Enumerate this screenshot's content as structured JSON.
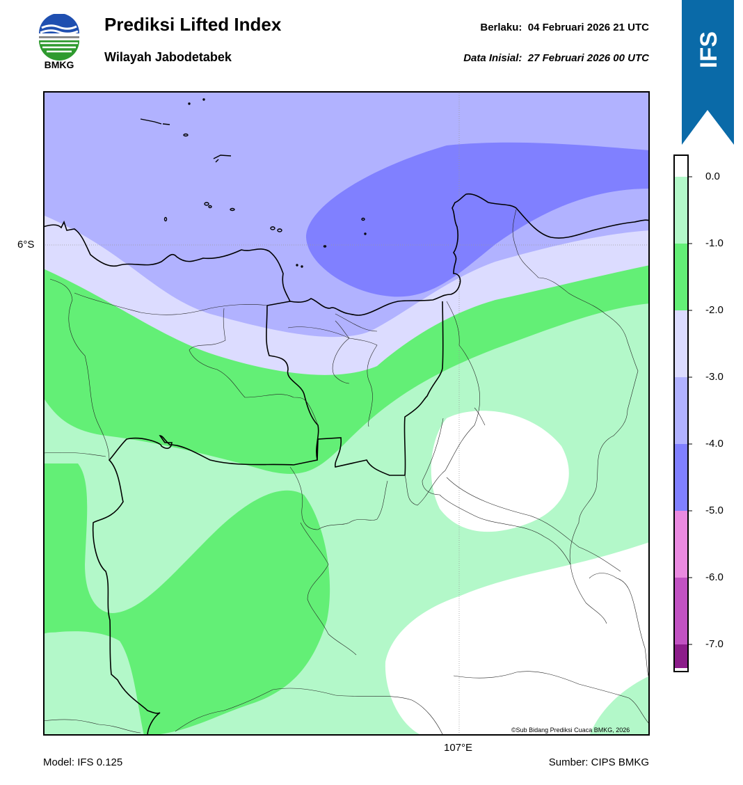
{
  "header": {
    "logo_text": "BMKG",
    "title": "Prediksi Lifted Index",
    "subtitle": "Wilayah Jabodetabek",
    "valid_label": "Berlaku:",
    "valid_value": "04 Februari 2026 21 UTC",
    "init_label": "Data Inisial:",
    "init_value": "27 Februari 2026 00 UTC"
  },
  "ribbon": {
    "text": "IFS",
    "color": "#0a6aa8"
  },
  "map": {
    "lat_label": "6°S",
    "lon_label": "107°E",
    "credit": "©Sub Bidang Prediksi Cuaca BMKG, 2026"
  },
  "colorbar": {
    "labels": [
      "0.0",
      "-1.0",
      "-2.0",
      "-3.0",
      "-4.0",
      "-5.0",
      "-6.0",
      "-7.0"
    ],
    "colors": [
      "#ffffff",
      "#b3f8c9",
      "#63ef76",
      "#dcdcff",
      "#b1b2ff",
      "#8080ff",
      "#ea8ae0",
      "#c152c2",
      "#8c1d8a"
    ]
  },
  "footer": {
    "model": "Model: IFS 0.125",
    "source": "Sumber: CIPS BMKG"
  }
}
